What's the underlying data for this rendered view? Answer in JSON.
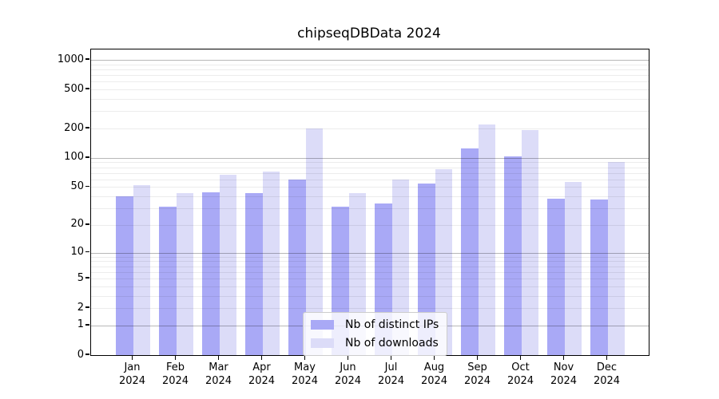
{
  "title": "chipseqDBData 2024",
  "colors": {
    "distinct_ips": "#a9a9f6",
    "downloads": "#dcdcf8",
    "axis": "#000000"
  },
  "legend": {
    "items": [
      {
        "label": "Nb of distinct IPs",
        "color": "#a9a9f6"
      },
      {
        "label": "Nb of downloads",
        "color": "#dcdcf8"
      }
    ]
  },
  "x_axis": {
    "months": [
      "Jan",
      "Feb",
      "Mar",
      "Apr",
      "May",
      "Jun",
      "Jul",
      "Aug",
      "Sep",
      "Oct",
      "Nov",
      "Dec"
    ],
    "year": "2024"
  },
  "y_axis": {
    "tick_labels": [
      "0",
      "1",
      "2",
      "5",
      "10",
      "20",
      "50",
      "100",
      "200",
      "500",
      "1000"
    ]
  },
  "chart_data": {
    "type": "bar",
    "title": "chipseqDBData 2024",
    "categories": [
      "Jan 2024",
      "Feb 2024",
      "Mar 2024",
      "Apr 2024",
      "May 2024",
      "Jun 2024",
      "Jul 2024",
      "Aug 2024",
      "Sep 2024",
      "Oct 2024",
      "Nov 2024",
      "Dec 2024"
    ],
    "series": [
      {
        "name": "Nb of distinct IPs",
        "color": "#a9a9f6",
        "values": [
          40,
          31,
          44,
          43,
          60,
          31,
          34,
          54,
          125,
          103,
          38,
          37
        ]
      },
      {
        "name": "Nb of downloads",
        "color": "#dcdcf8",
        "values": [
          52,
          43,
          67,
          72,
          200,
          43,
          60,
          76,
          218,
          194,
          57,
          91
        ]
      }
    ],
    "xlabel": "",
    "ylabel": "",
    "yscale": "log1p",
    "yticks": [
      0,
      1,
      2,
      5,
      10,
      20,
      50,
      100,
      200,
      500,
      1000
    ],
    "minor_grid_values": [
      2,
      3,
      4,
      5,
      6,
      7,
      8,
      9,
      20,
      30,
      40,
      50,
      60,
      70,
      80,
      90,
      200,
      300,
      400,
      500,
      600,
      700,
      800,
      900
    ],
    "major_grid_values": [
      1,
      10,
      100,
      1000
    ],
    "ylim": [
      0,
      1265
    ],
    "grid": "both",
    "legend_position": "lower center"
  }
}
